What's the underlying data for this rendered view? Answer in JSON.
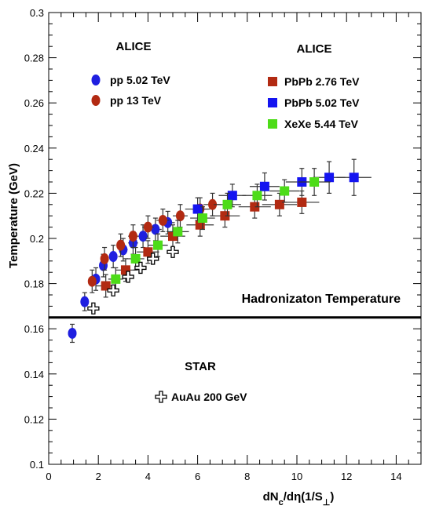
{
  "chart_data": {
    "type": "scatter",
    "title": "",
    "xlabel": "dN_c/dη(1/S_⊥)",
    "ylabel": "Temperature (GeV)",
    "xlim": [
      0,
      15
    ],
    "ylim": [
      0.1,
      0.3
    ],
    "xticks": [
      0,
      2,
      4,
      6,
      8,
      10,
      12,
      14
    ],
    "yticks": [
      0.12,
      0.14,
      0.16,
      0.18,
      0.2,
      0.22,
      0.24,
      0.26,
      0.28,
      0.3
    ],
    "xtick_labels": [
      "0",
      "2",
      "4",
      "6",
      "8",
      "10",
      "12",
      "14"
    ],
    "ytick_labels": [
      "0.12",
      "0.14",
      "0.16",
      "0.18",
      "0.2",
      "0.22",
      "0.24",
      "0.26",
      "0.28",
      "0.3"
    ],
    "ytick_label_min": "0.1",
    "legend_groups": [
      {
        "header": "ALICE",
        "position": "top-left"
      },
      {
        "header": "ALICE",
        "position": "top-right"
      },
      {
        "header": "STAR",
        "position": "bottom-center"
      }
    ],
    "hline": {
      "y": 0.165,
      "label": "Hadronizaton Temperature"
    },
    "series": [
      {
        "name": "pp 5.02 TeV",
        "group": 0,
        "marker": "circle",
        "color": "#1f1fe0",
        "points": [
          {
            "x": 0.95,
            "y": 0.158,
            "ex": 0.0,
            "ey": 0.004
          },
          {
            "x": 1.45,
            "y": 0.172,
            "ex": 0.1,
            "ey": 0.004
          },
          {
            "x": 1.9,
            "y": 0.182,
            "ex": 0.12,
            "ey": 0.005
          },
          {
            "x": 2.2,
            "y": 0.188,
            "ex": 0.14,
            "ey": 0.005
          },
          {
            "x": 2.6,
            "y": 0.192,
            "ex": 0.16,
            "ey": 0.005
          },
          {
            "x": 3.0,
            "y": 0.195,
            "ex": 0.18,
            "ey": 0.005
          },
          {
            "x": 3.4,
            "y": 0.198,
            "ex": 0.2,
            "ey": 0.005
          },
          {
            "x": 3.8,
            "y": 0.201,
            "ex": 0.22,
            "ey": 0.005
          },
          {
            "x": 4.3,
            "y": 0.204,
            "ex": 0.25,
            "ey": 0.005
          },
          {
            "x": 4.8,
            "y": 0.207,
            "ex": 0.28,
            "ey": 0.005
          }
        ]
      },
      {
        "name": "pp 13 TeV",
        "group": 0,
        "marker": "circle",
        "color": "#b22a12",
        "points": [
          {
            "x": 1.75,
            "y": 0.181,
            "ex": 0.12,
            "ey": 0.005
          },
          {
            "x": 2.25,
            "y": 0.191,
            "ex": 0.14,
            "ey": 0.005
          },
          {
            "x": 2.9,
            "y": 0.197,
            "ex": 0.17,
            "ey": 0.005
          },
          {
            "x": 3.4,
            "y": 0.201,
            "ex": 0.2,
            "ey": 0.005
          },
          {
            "x": 4.0,
            "y": 0.205,
            "ex": 0.23,
            "ey": 0.005
          },
          {
            "x": 4.6,
            "y": 0.208,
            "ex": 0.26,
            "ey": 0.005
          },
          {
            "x": 5.3,
            "y": 0.21,
            "ex": 0.3,
            "ey": 0.005
          },
          {
            "x": 6.1,
            "y": 0.213,
            "ex": 0.34,
            "ey": 0.005
          },
          {
            "x": 6.6,
            "y": 0.215,
            "ex": 0.36,
            "ey": 0.005
          }
        ]
      },
      {
        "name": "PbPb 2.76 TeV",
        "group": 1,
        "marker": "square",
        "color": "#b22a12",
        "points": [
          {
            "x": 2.3,
            "y": 0.179,
            "ex": 0.4,
            "ey": 0.005
          },
          {
            "x": 3.1,
            "y": 0.186,
            "ex": 0.4,
            "ey": 0.005
          },
          {
            "x": 4.0,
            "y": 0.194,
            "ex": 0.45,
            "ey": 0.005
          },
          {
            "x": 5.0,
            "y": 0.201,
            "ex": 0.5,
            "ey": 0.005
          },
          {
            "x": 6.1,
            "y": 0.206,
            "ex": 0.55,
            "ey": 0.005
          },
          {
            "x": 7.1,
            "y": 0.21,
            "ex": 0.6,
            "ey": 0.005
          },
          {
            "x": 8.3,
            "y": 0.214,
            "ex": 0.65,
            "ey": 0.005
          },
          {
            "x": 9.3,
            "y": 0.215,
            "ex": 0.7,
            "ey": 0.005
          },
          {
            "x": 10.2,
            "y": 0.216,
            "ex": 0.7,
            "ey": 0.005
          }
        ]
      },
      {
        "name": "PbPb 5.02 TeV",
        "group": 1,
        "marker": "square",
        "color": "#1414f0",
        "points": [
          {
            "x": 6.0,
            "y": 0.213,
            "ex": 0.5,
            "ey": 0.005
          },
          {
            "x": 7.4,
            "y": 0.219,
            "ex": 0.55,
            "ey": 0.005
          },
          {
            "x": 8.7,
            "y": 0.223,
            "ex": 0.6,
            "ey": 0.006
          },
          {
            "x": 10.2,
            "y": 0.225,
            "ex": 0.65,
            "ey": 0.006
          },
          {
            "x": 11.3,
            "y": 0.227,
            "ex": 0.65,
            "ey": 0.007
          },
          {
            "x": 12.3,
            "y": 0.227,
            "ex": 0.7,
            "ey": 0.008
          }
        ]
      },
      {
        "name": "XeXe 5.44 TeV",
        "group": 1,
        "marker": "square",
        "color": "#4ddc18",
        "points": [
          {
            "x": 2.7,
            "y": 0.182,
            "ex": 0.3,
            "ey": 0.005
          },
          {
            "x": 3.5,
            "y": 0.191,
            "ex": 0.35,
            "ey": 0.005
          },
          {
            "x": 4.4,
            "y": 0.197,
            "ex": 0.4,
            "ey": 0.005
          },
          {
            "x": 5.2,
            "y": 0.203,
            "ex": 0.45,
            "ey": 0.005
          },
          {
            "x": 6.2,
            "y": 0.209,
            "ex": 0.5,
            "ey": 0.005
          },
          {
            "x": 7.2,
            "y": 0.215,
            "ex": 0.55,
            "ey": 0.005
          },
          {
            "x": 8.4,
            "y": 0.219,
            "ex": 0.6,
            "ey": 0.005
          },
          {
            "x": 9.5,
            "y": 0.221,
            "ex": 0.6,
            "ey": 0.005
          },
          {
            "x": 10.7,
            "y": 0.225,
            "ex": 0.65,
            "ey": 0.006
          }
        ]
      },
      {
        "name": "AuAu 200 GeV",
        "group": 2,
        "marker": "cross",
        "color": "#000000",
        "points": [
          {
            "x": 1.8,
            "y": 0.169,
            "ex": 0.0,
            "ey": 0.0
          },
          {
            "x": 2.6,
            "y": 0.177,
            "ex": 0.0,
            "ey": 0.0
          },
          {
            "x": 3.2,
            "y": 0.183,
            "ex": 0.0,
            "ey": 0.0
          },
          {
            "x": 3.7,
            "y": 0.187,
            "ex": 0.0,
            "ey": 0.0
          },
          {
            "x": 4.2,
            "y": 0.191,
            "ex": 0.0,
            "ey": 0.0
          },
          {
            "x": 5.0,
            "y": 0.194,
            "ex": 0.0,
            "ey": 0.0
          }
        ]
      }
    ]
  }
}
